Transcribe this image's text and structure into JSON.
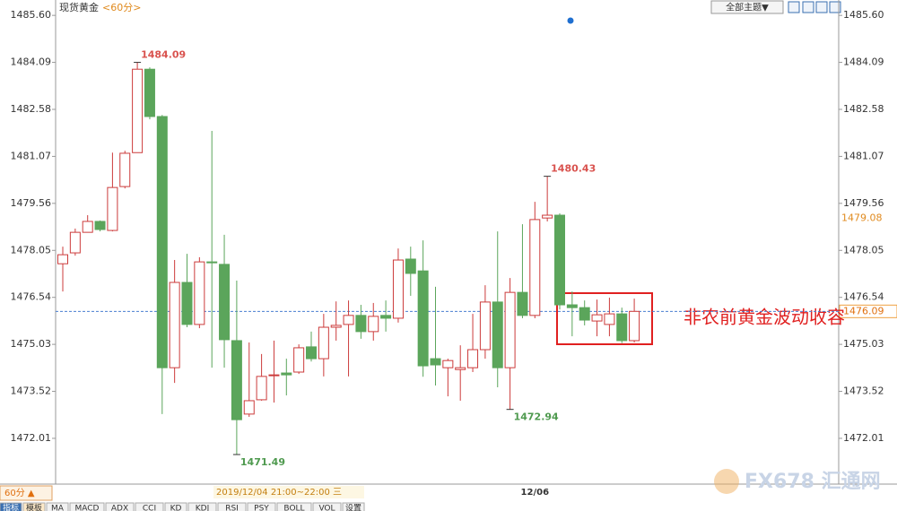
{
  "ui": {
    "title": "现货黄金",
    "period": "<60分>",
    "theme_menu": "全部主题▼",
    "period_button": "60分 ▲",
    "cursor_time": "2019/12/04 21:00~22:00 三",
    "tabs": [
      "指标",
      "模板",
      "MA",
      "MACD",
      "ADX",
      "CCI",
      "KD",
      "KDJ",
      "RSI",
      "PSY",
      "BOLL",
      "VOL",
      "设置"
    ],
    "annotation": "非农前黄金波动收容",
    "watermark": "FX678 汇通网"
  },
  "chart_data": {
    "type": "candlestick",
    "x": [
      null,
      null,
      null,
      null,
      null,
      null,
      null,
      null,
      null,
      null,
      null,
      null,
      null,
      null,
      null,
      null,
      null,
      null,
      null,
      null,
      null,
      null,
      null,
      null,
      null,
      null,
      null,
      null,
      null,
      null,
      null,
      null,
      null,
      null,
      null,
      null,
      null,
      null,
      "12/06",
      null,
      null,
      null,
      null,
      null,
      null,
      null,
      null
    ],
    "open": [
      1477.62,
      1477.97,
      1478.63,
      1478.98,
      1478.69,
      1480.1,
      1481.19,
      1483.87,
      1482.35,
      1474.28,
      1477.02,
      1475.67,
      1477.68,
      1477.6,
      1475.15,
      1472.79,
      1473.25,
      1474.05,
      1474.11,
      1474.14,
      1474.95,
      1474.57,
      1475.58,
      1475.67,
      1475.96,
      1475.44,
      1475.96,
      1475.87,
      1477.77,
      1477.39,
      1474.57,
      1474.28,
      1474.22,
      1474.28,
      1474.86,
      1476.39,
      1474.28,
      1476.7,
      1475.96,
      1479.09,
      1479.18,
      1476.3,
      1476.21,
      1475.78,
      1475.67,
      1476.01,
      1475.15
    ],
    "high": [
      1478.17,
      1478.75,
      1479.18,
      1479.01,
      1481.19,
      1481.25,
      1484.09,
      1483.93,
      1482.4,
      1477.74,
      1477.94,
      1477.83,
      1481.89,
      1478.55,
      1477.08,
      1475.09,
      1474.72,
      1475.15,
      1474.57,
      1475.03,
      1475.44,
      1476.01,
      1476.41,
      1476.44,
      1476.3,
      1476.36,
      1476.44,
      1478.11,
      1478.17,
      1478.37,
      1476.88,
      1474.57,
      1475.0,
      1476.01,
      1476.93,
      1478.66,
      1477.16,
      1478.89,
      1479.61,
      1480.43,
      1479.24,
      1476.73,
      1476.44,
      1476.47,
      1476.53,
      1476.21,
      1476.5
    ],
    "low": [
      1476.73,
      1477.88,
      1478.66,
      1478.66,
      1478.66,
      1480.04,
      1481.19,
      1482.26,
      1472.79,
      1473.79,
      1475.58,
      1475.55,
      1474.28,
      1474.28,
      1471.49,
      1472.7,
      1473.22,
      1473.16,
      1473.39,
      1474.08,
      1474.48,
      1474.0,
      1475.15,
      1474.0,
      1475.21,
      1475.15,
      1475.44,
      1475.73,
      1476.59,
      1473.99,
      1473.71,
      1473.36,
      1473.22,
      1474.14,
      1474.57,
      1473.65,
      1472.94,
      1475.87,
      1475.87,
      1478.98,
      1476.15,
      1475.29,
      1475.64,
      1475.29,
      1475.29,
      1475.07,
      1475.09
    ],
    "close": [
      1477.91,
      1478.63,
      1478.98,
      1478.72,
      1480.07,
      1481.17,
      1483.87,
      1482.35,
      1474.28,
      1477.02,
      1475.67,
      1477.68,
      1477.65,
      1475.18,
      1472.61,
      1473.22,
      1474.0,
      1474.05,
      1474.05,
      1474.92,
      1474.57,
      1475.58,
      1475.64,
      1475.96,
      1475.44,
      1475.93,
      1475.87,
      1477.74,
      1477.31,
      1474.34,
      1474.37,
      1474.51,
      1474.28,
      1474.86,
      1476.39,
      1474.28,
      1476.7,
      1475.96,
      1479.04,
      1479.18,
      1476.3,
      1476.21,
      1475.81,
      1475.98,
      1476.01,
      1475.15,
      1476.09
    ],
    "up_color": "#cc3b3b",
    "down_color": "#5ba55b",
    "high_label_color": "#d9534f",
    "low_label_color": "#4f9a4f",
    "ylim": [
      1470.54,
      1485.95
    ],
    "yticks": [
      1472.01,
      1473.52,
      1475.03,
      1476.54,
      1478.05,
      1479.56,
      1481.07,
      1482.58,
      1484.09,
      {
        "value": 1485.6,
        "label": "1485.60"
      }
    ],
    "current_price": 1476.09,
    "price_marker": 1479.08
  }
}
